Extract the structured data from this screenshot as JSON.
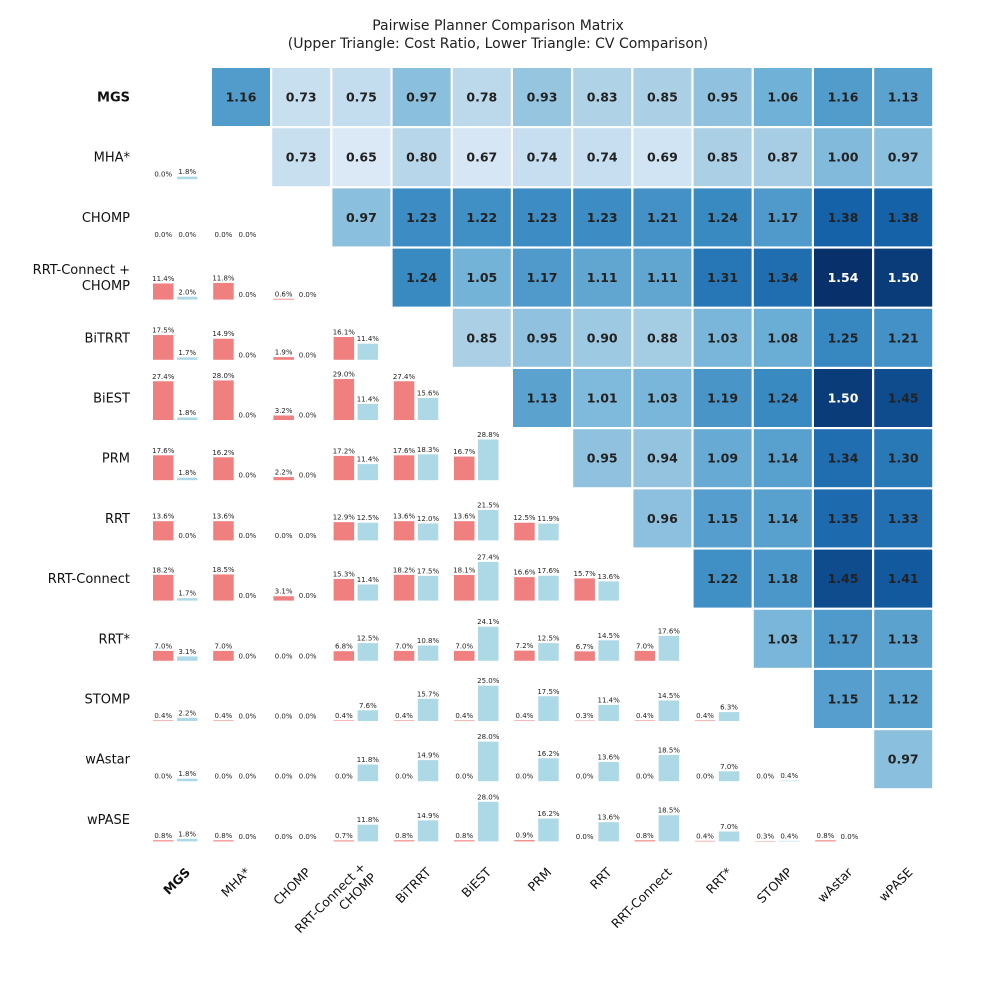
{
  "chart_data": {
    "type": "heatmap",
    "title": "Pairwise Planner Comparison Matrix",
    "subtitle": "(Upper Triangle: Cost Ratio, Lower Triangle: CV Comparison)",
    "row_labels": [
      "MGS",
      "MHA*",
      "CHOMP",
      "RRT-Connect + CHOMP",
      "BiTRRT",
      "BiEST",
      "PRM",
      "RRT",
      "RRT-Connect",
      "RRT*",
      "STOMP",
      "wAstar",
      "wPASE"
    ],
    "col_labels": [
      "MGS",
      "MHA*",
      "CHOMP",
      "RRT-Connect + CHOMP",
      "BiTRRT",
      "BiEST",
      "PRM",
      "RRT",
      "RRT-Connect",
      "RRT*",
      "STOMP",
      "wAstar",
      "wPASE"
    ],
    "bold_labels": [
      "MGS"
    ],
    "upper_cost_ratio": [
      [
        null,
        1.16,
        0.73,
        0.75,
        0.97,
        0.78,
        0.93,
        0.83,
        0.85,
        0.95,
        1.06,
        1.16,
        1.13
      ],
      [
        null,
        null,
        0.73,
        0.65,
        0.8,
        0.67,
        0.74,
        0.74,
        0.69,
        0.85,
        0.87,
        1.0,
        0.97
      ],
      [
        null,
        null,
        null,
        0.97,
        1.23,
        1.22,
        1.23,
        1.23,
        1.21,
        1.24,
        1.17,
        1.38,
        1.38
      ],
      [
        null,
        null,
        null,
        null,
        1.24,
        1.05,
        1.17,
        1.11,
        1.11,
        1.31,
        1.34,
        1.54,
        1.5
      ],
      [
        null,
        null,
        null,
        null,
        null,
        0.85,
        0.95,
        0.9,
        0.88,
        1.03,
        1.08,
        1.25,
        1.21
      ],
      [
        null,
        null,
        null,
        null,
        null,
        null,
        1.13,
        1.01,
        1.03,
        1.19,
        1.24,
        1.5,
        1.45
      ],
      [
        null,
        null,
        null,
        null,
        null,
        null,
        null,
        0.95,
        0.94,
        1.09,
        1.14,
        1.34,
        1.3
      ],
      [
        null,
        null,
        null,
        null,
        null,
        null,
        null,
        null,
        0.96,
        1.15,
        1.14,
        1.35,
        1.33
      ],
      [
        null,
        null,
        null,
        null,
        null,
        null,
        null,
        null,
        null,
        1.22,
        1.18,
        1.45,
        1.41
      ],
      [
        null,
        null,
        null,
        null,
        null,
        null,
        null,
        null,
        null,
        null,
        1.03,
        1.17,
        1.13
      ],
      [
        null,
        null,
        null,
        null,
        null,
        null,
        null,
        null,
        null,
        null,
        null,
        1.15,
        1.12
      ],
      [
        null,
        null,
        null,
        null,
        null,
        null,
        null,
        null,
        null,
        null,
        null,
        null,
        0.97
      ],
      [
        null,
        null,
        null,
        null,
        null,
        null,
        null,
        null,
        null,
        null,
        null,
        null,
        null
      ]
    ],
    "cost_color_range": [
      0.65,
      1.54
    ],
    "lower_cv_comparison": [
      [],
      [
        [
          0.0,
          1.8
        ]
      ],
      [
        [
          0.0,
          0.0
        ],
        [
          0.0,
          0.0
        ]
      ],
      [
        [
          11.4,
          2.0
        ],
        [
          11.8,
          0.0
        ],
        [
          0.6,
          0.0
        ]
      ],
      [
        [
          17.5,
          1.7
        ],
        [
          14.9,
          0.0
        ],
        [
          1.9,
          0.0
        ],
        [
          16.1,
          11.4
        ]
      ],
      [
        [
          27.4,
          1.8
        ],
        [
          28.0,
          0.0
        ],
        [
          3.2,
          0.0
        ],
        [
          29.0,
          11.4
        ],
        [
          27.4,
          15.6
        ]
      ],
      [
        [
          17.6,
          1.8
        ],
        [
          16.2,
          0.0
        ],
        [
          2.2,
          0.0
        ],
        [
          17.2,
          11.4
        ],
        [
          17.6,
          18.3
        ],
        [
          16.7,
          28.8
        ]
      ],
      [
        [
          13.6,
          0.0
        ],
        [
          13.6,
          0.0
        ],
        [
          0.0,
          0.0
        ],
        [
          12.9,
          12.5
        ],
        [
          13.6,
          12.0
        ],
        [
          13.6,
          21.5
        ],
        [
          12.5,
          11.9
        ]
      ],
      [
        [
          18.2,
          1.7
        ],
        [
          18.5,
          0.0
        ],
        [
          3.1,
          0.0
        ],
        [
          15.3,
          11.4
        ],
        [
          18.2,
          17.5
        ],
        [
          18.1,
          27.4
        ],
        [
          16.6,
          17.6
        ],
        [
          15.7,
          13.6
        ]
      ],
      [
        [
          7.0,
          3.1
        ],
        [
          7.0,
          0.0
        ],
        [
          0.0,
          0.0
        ],
        [
          6.8,
          12.5
        ],
        [
          7.0,
          10.8
        ],
        [
          7.0,
          24.1
        ],
        [
          7.2,
          12.5
        ],
        [
          6.7,
          14.5
        ],
        [
          7.0,
          17.6
        ]
      ],
      [
        [
          0.4,
          2.2
        ],
        [
          0.4,
          0.0
        ],
        [
          0.0,
          0.0
        ],
        [
          0.4,
          7.6
        ],
        [
          0.4,
          15.7
        ],
        [
          0.4,
          25.0
        ],
        [
          0.4,
          17.5
        ],
        [
          0.3,
          11.4
        ],
        [
          0.4,
          14.5
        ],
        [
          0.4,
          6.3
        ]
      ],
      [
        [
          0.0,
          1.8
        ],
        [
          0.0,
          0.0
        ],
        [
          0.0,
          0.0
        ],
        [
          0.0,
          11.8
        ],
        [
          0.0,
          14.9
        ],
        [
          0.0,
          28.0
        ],
        [
          0.0,
          16.2
        ],
        [
          0.0,
          13.6
        ],
        [
          0.0,
          18.5
        ],
        [
          0.0,
          7.0
        ],
        [
          0.0,
          0.4
        ]
      ],
      [
        [
          0.8,
          1.8
        ],
        [
          0.8,
          0.0
        ],
        [
          0.0,
          0.0
        ],
        [
          0.7,
          11.8
        ],
        [
          0.8,
          14.9
        ],
        [
          0.8,
          28.0
        ],
        [
          0.9,
          16.2
        ],
        [
          0.0,
          13.6
        ],
        [
          0.8,
          18.5
        ],
        [
          0.4,
          7.0
        ],
        [
          0.3,
          0.4
        ],
        [
          0.8,
          0.0
        ]
      ]
    ],
    "lower_cell_note": "each cell: [row planner CV %, column planner CV %]",
    "bar_scale_max": 29.0,
    "colors": {
      "row_bar": "#f08080",
      "col_bar": "#add8e6",
      "light_text": "#ffffff",
      "dark_text": "#222222"
    }
  }
}
